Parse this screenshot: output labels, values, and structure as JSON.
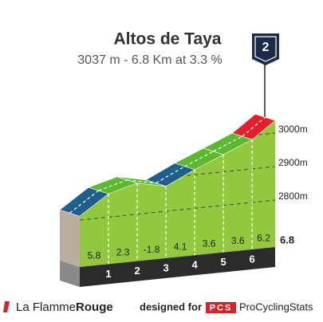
{
  "chart_data": {
    "type": "profile",
    "title": "Altos de Taya",
    "subtitle": "3037 m - 6.8 Km at 3.3 %",
    "category": "2",
    "summit_elevation": 3037,
    "xlim": [
      0,
      6.8
    ],
    "x": [
      1,
      2,
      3,
      4,
      5,
      6,
      6.8
    ],
    "values": [
      5.8,
      2.3,
      -1.8,
      4.1,
      3.6,
      3.6,
      6.2
    ],
    "colors": [
      "#1e5f8e",
      "#5cb82e",
      "#5cb82e",
      "#1e5f8e",
      "#5cb82e",
      "#5cb82e",
      "#e0202a"
    ],
    "face_color": "#92c83e",
    "ylim": [
      2660,
      3040
    ],
    "yticks": [
      {
        "value": 2800,
        "label": "2800m"
      },
      {
        "value": 2900,
        "label": "2900m"
      },
      {
        "value": 3000,
        "label": "3000m"
      }
    ]
  },
  "footer": {
    "brand_a": "La Flamme",
    "brand_b": "Rouge",
    "designed": "designed for",
    "pcs": "PCS",
    "site": "ProCyclingStats"
  }
}
